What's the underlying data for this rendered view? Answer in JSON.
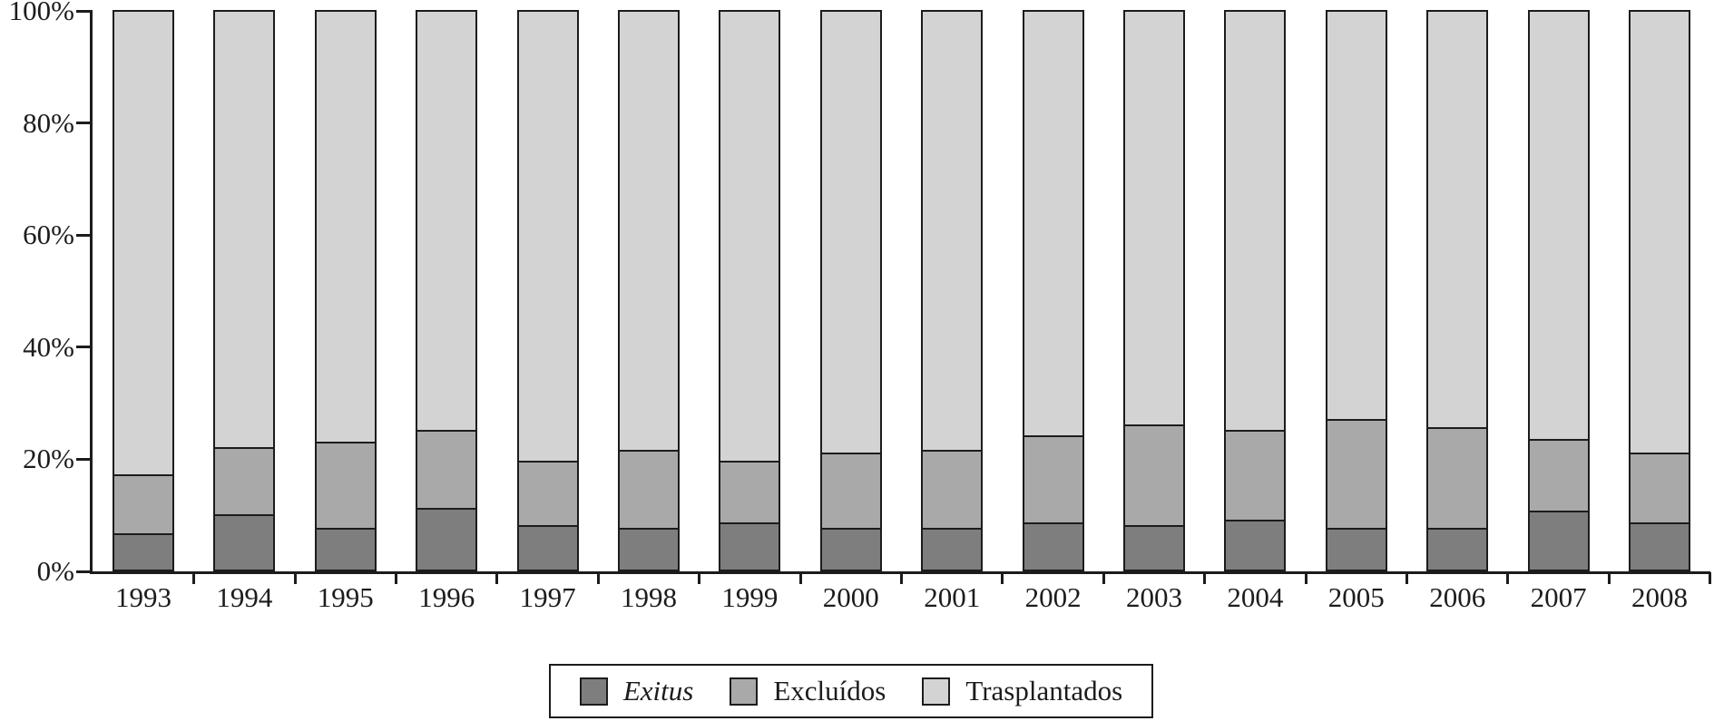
{
  "chart_data": {
    "type": "bar",
    "stacked": true,
    "percent_stacked": true,
    "title": "",
    "xlabel": "",
    "ylabel": "",
    "grid": false,
    "legend_position": "bottom-center",
    "ylim": [
      0,
      100
    ],
    "categories": [
      "1993",
      "1994",
      "1995",
      "1996",
      "1997",
      "1998",
      "1999",
      "2000",
      "2001",
      "2002",
      "2003",
      "2004",
      "2005",
      "2006",
      "2007",
      "2008"
    ],
    "series": [
      {
        "name": "Exitus",
        "italic": true,
        "color": "#7e7e7e",
        "values": [
          6.5,
          10.0,
          7.5,
          11.0,
          8.0,
          7.5,
          8.5,
          7.5,
          7.5,
          8.5,
          8.0,
          9.0,
          7.5,
          7.5,
          10.5,
          8.5
        ]
      },
      {
        "name": "Excluídos",
        "italic": false,
        "color": "#a9a9a9",
        "values": [
          10.5,
          12.0,
          15.5,
          14.0,
          11.5,
          14.0,
          11.0,
          13.5,
          14.0,
          15.5,
          18.0,
          16.0,
          19.5,
          18.0,
          13.0,
          12.5
        ]
      },
      {
        "name": "Trasplantados",
        "italic": false,
        "color": "#d3d3d3",
        "values": [
          83.0,
          78.0,
          77.0,
          75.0,
          80.5,
          78.5,
          80.5,
          79.0,
          78.5,
          76.0,
          74.0,
          75.0,
          73.0,
          74.5,
          76.5,
          79.0
        ]
      }
    ],
    "y_ticks": [
      {
        "label": "0%",
        "value": 0
      },
      {
        "label": "20%",
        "value": 20
      },
      {
        "label": "40%",
        "value": 40
      },
      {
        "label": "60%",
        "value": 60
      },
      {
        "label": "80%",
        "value": 80
      },
      {
        "label": "100%",
        "value": 100
      }
    ]
  },
  "colors": {
    "axis": "#1c1c1c",
    "text": "#1c1c1c",
    "background": "#ffffff"
  }
}
